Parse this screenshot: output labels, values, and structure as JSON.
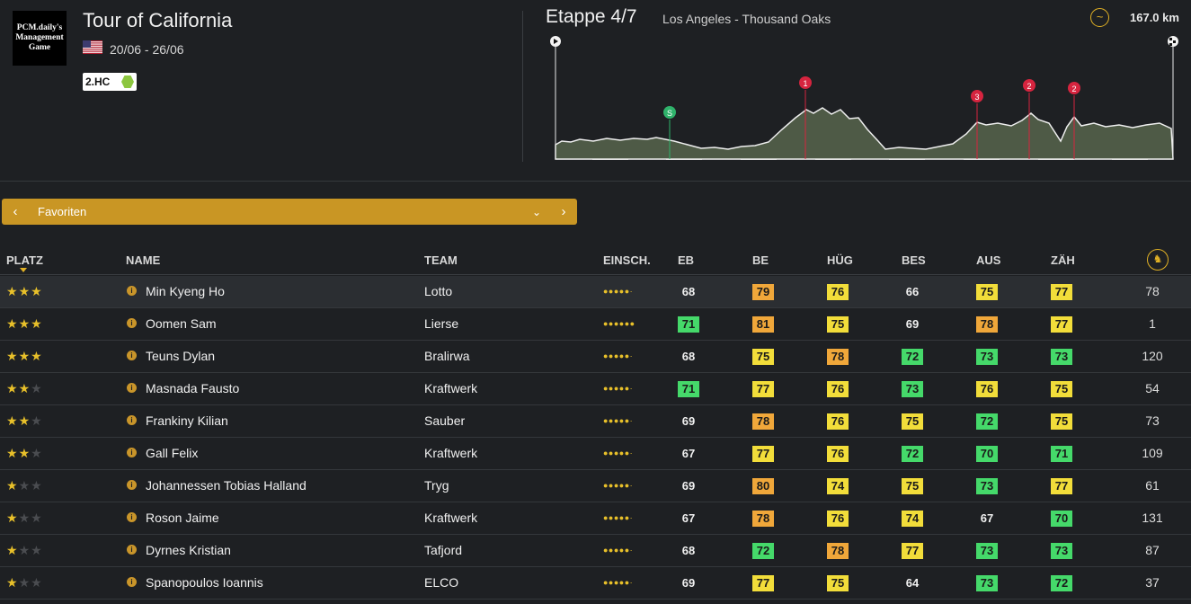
{
  "race": {
    "logo_lines": [
      "PCM.daily's",
      "Management",
      "Game"
    ],
    "title": "Tour of California",
    "dates": "20/06 - 26/06",
    "class": "2.HC"
  },
  "stage": {
    "label": "Etappe 4/7",
    "route": "Los Angeles - Thousand Oaks",
    "distance": "167.0 km",
    "markers": [
      {
        "label": "S",
        "color": "#2fb36b"
      },
      {
        "label": "1",
        "color": "#d6243f"
      },
      {
        "label": "3",
        "color": "#d6243f"
      },
      {
        "label": "2",
        "color": "#d6243f"
      },
      {
        "label": "2",
        "color": "#d6243f"
      }
    ]
  },
  "filter": {
    "label": "Favoriten"
  },
  "table": {
    "headers": {
      "platz": "PLATZ",
      "name": "NAME",
      "team": "TEAM",
      "einsch": "EINSCH.",
      "eb": "EB",
      "be": "BE",
      "hug": "HÜG",
      "bes": "BES",
      "aus": "AUS",
      "zah": "ZÄH"
    },
    "colors": {
      "green": "#45d96a",
      "yellow": "#f2dd3a",
      "orange": "#f0a73a"
    },
    "rows": [
      {
        "stars": 3,
        "name": "Min Kyeng Ho",
        "team": "Lotto",
        "form": 5,
        "stats": [
          {
            "v": "68",
            "c": ""
          },
          {
            "v": "79",
            "c": "orange"
          },
          {
            "v": "76",
            "c": "yellow"
          },
          {
            "v": "66",
            "c": ""
          },
          {
            "v": "75",
            "c": "yellow"
          },
          {
            "v": "77",
            "c": "yellow"
          }
        ],
        "rank": "78"
      },
      {
        "stars": 3,
        "name": "Oomen Sam",
        "team": "Lierse",
        "form": 6,
        "stats": [
          {
            "v": "71",
            "c": "green"
          },
          {
            "v": "81",
            "c": "orange"
          },
          {
            "v": "75",
            "c": "yellow"
          },
          {
            "v": "69",
            "c": ""
          },
          {
            "v": "78",
            "c": "orange"
          },
          {
            "v": "77",
            "c": "yellow"
          }
        ],
        "rank": "1"
      },
      {
        "stars": 3,
        "name": "Teuns Dylan",
        "team": "Bralirwa",
        "form": 5,
        "stats": [
          {
            "v": "68",
            "c": ""
          },
          {
            "v": "75",
            "c": "yellow"
          },
          {
            "v": "78",
            "c": "orange"
          },
          {
            "v": "72",
            "c": "green"
          },
          {
            "v": "73",
            "c": "green"
          },
          {
            "v": "73",
            "c": "green"
          }
        ],
        "rank": "120"
      },
      {
        "stars": 2,
        "name": "Masnada Fausto",
        "team": "Kraftwerk",
        "form": 5,
        "stats": [
          {
            "v": "71",
            "c": "green"
          },
          {
            "v": "77",
            "c": "yellow"
          },
          {
            "v": "76",
            "c": "yellow"
          },
          {
            "v": "73",
            "c": "green"
          },
          {
            "v": "76",
            "c": "yellow"
          },
          {
            "v": "75",
            "c": "yellow"
          }
        ],
        "rank": "54"
      },
      {
        "stars": 2,
        "name": "Frankiny Kilian",
        "team": "Sauber",
        "form": 5,
        "stats": [
          {
            "v": "69",
            "c": ""
          },
          {
            "v": "78",
            "c": "orange"
          },
          {
            "v": "76",
            "c": "yellow"
          },
          {
            "v": "75",
            "c": "yellow"
          },
          {
            "v": "72",
            "c": "green"
          },
          {
            "v": "75",
            "c": "yellow"
          }
        ],
        "rank": "73"
      },
      {
        "stars": 2,
        "name": "Gall Felix",
        "team": "Kraftwerk",
        "form": 5,
        "stats": [
          {
            "v": "67",
            "c": ""
          },
          {
            "v": "77",
            "c": "yellow"
          },
          {
            "v": "76",
            "c": "yellow"
          },
          {
            "v": "72",
            "c": "green"
          },
          {
            "v": "70",
            "c": "green"
          },
          {
            "v": "71",
            "c": "green"
          }
        ],
        "rank": "109"
      },
      {
        "stars": 1,
        "name": "Johannessen Tobias Halland",
        "team": "Tryg",
        "form": 5,
        "stats": [
          {
            "v": "69",
            "c": ""
          },
          {
            "v": "80",
            "c": "orange"
          },
          {
            "v": "74",
            "c": "yellow"
          },
          {
            "v": "75",
            "c": "yellow"
          },
          {
            "v": "73",
            "c": "green"
          },
          {
            "v": "77",
            "c": "yellow"
          }
        ],
        "rank": "61"
      },
      {
        "stars": 1,
        "name": "Roson Jaime",
        "team": "Kraftwerk",
        "form": 5,
        "stats": [
          {
            "v": "67",
            "c": ""
          },
          {
            "v": "78",
            "c": "orange"
          },
          {
            "v": "76",
            "c": "yellow"
          },
          {
            "v": "74",
            "c": "yellow"
          },
          {
            "v": "67",
            "c": ""
          },
          {
            "v": "70",
            "c": "green"
          }
        ],
        "rank": "131"
      },
      {
        "stars": 1,
        "name": "Dyrnes Kristian",
        "team": "Tafjord",
        "form": 5,
        "stats": [
          {
            "v": "68",
            "c": ""
          },
          {
            "v": "72",
            "c": "green"
          },
          {
            "v": "78",
            "c": "orange"
          },
          {
            "v": "77",
            "c": "yellow"
          },
          {
            "v": "73",
            "c": "green"
          },
          {
            "v": "73",
            "c": "green"
          }
        ],
        "rank": "87"
      },
      {
        "stars": 1,
        "name": "Spanopoulos Ioannis",
        "team": "ELCO",
        "form": 5,
        "stats": [
          {
            "v": "69",
            "c": ""
          },
          {
            "v": "77",
            "c": "yellow"
          },
          {
            "v": "75",
            "c": "yellow"
          },
          {
            "v": "64",
            "c": ""
          },
          {
            "v": "73",
            "c": "green"
          },
          {
            "v": "72",
            "c": "green"
          }
        ],
        "rank": "37"
      }
    ]
  }
}
